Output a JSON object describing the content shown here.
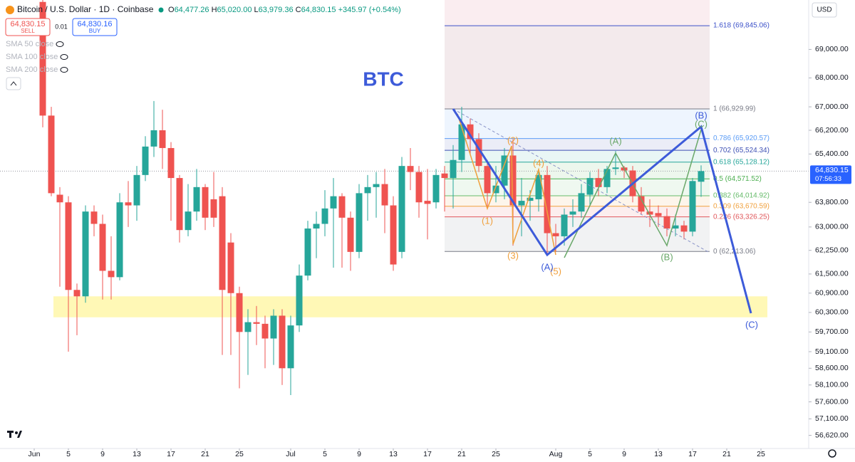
{
  "header": {
    "symbol": "Bitcoin / U.S. Dollar · 1D · Coinbase",
    "ohlc": [
      {
        "key": "O",
        "value": "64,477.26"
      },
      {
        "key": "H",
        "value": "65,020.00"
      },
      {
        "key": "L",
        "value": "63,979.36"
      },
      {
        "key": "C",
        "value": "64,830.15"
      }
    ],
    "change": "+345.97 (+0.54%)",
    "sell_price": "64,830.15",
    "sell": "SELL",
    "spread": "0.01",
    "buy_price": "64,830.16",
    "buy": "BUY",
    "indicators": [
      "SMA 50 close",
      "SMA 100 close",
      "SMA 200 close"
    ],
    "currency": "USD"
  },
  "chart_data": {
    "type": "candlestick",
    "title": "BTC",
    "log_scale": true,
    "grid": false,
    "up_color": "#26a69a",
    "down_color": "#ef5350",
    "xlim": [
      -4,
      90.583
    ],
    "ylim": [
      56240,
      70770
    ],
    "xticks": [
      {
        "value": 0,
        "label": "Jun"
      },
      {
        "value": 4,
        "label": "5"
      },
      {
        "value": 8,
        "label": "9"
      },
      {
        "value": 12,
        "label": "13"
      },
      {
        "value": 16,
        "label": "17"
      },
      {
        "value": 20,
        "label": "21"
      },
      {
        "value": 24,
        "label": "25"
      },
      {
        "value": 30,
        "label": "Jul"
      },
      {
        "value": 34,
        "label": "5"
      },
      {
        "value": 38,
        "label": "9"
      },
      {
        "value": 42,
        "label": "13"
      },
      {
        "value": 46,
        "label": "17"
      },
      {
        "value": 50,
        "label": "21"
      },
      {
        "value": 54,
        "label": "25"
      },
      {
        "value": 61,
        "label": "Aug"
      },
      {
        "value": 65,
        "label": "5"
      },
      {
        "value": 69,
        "label": "9"
      },
      {
        "value": 73,
        "label": "13"
      },
      {
        "value": 77,
        "label": "17"
      },
      {
        "value": 81,
        "label": "21"
      },
      {
        "value": 85,
        "label": "25"
      }
    ],
    "yticks": [
      {
        "value": 56620,
        "label": "56,620.00"
      },
      {
        "value": 57100,
        "label": "57,100.00"
      },
      {
        "value": 57600,
        "label": "57,600.00"
      },
      {
        "value": 58100,
        "label": "58,100.00"
      },
      {
        "value": 58600,
        "label": "58,600.00"
      },
      {
        "value": 59100,
        "label": "59,100.00"
      },
      {
        "value": 59700,
        "label": "59,700.00"
      },
      {
        "value": 60300,
        "label": "60,300.00"
      },
      {
        "value": 60900,
        "label": "60,900.00"
      },
      {
        "value": 61500,
        "label": "61,500.00"
      },
      {
        "value": 62250,
        "label": "62,250.00"
      },
      {
        "value": 63000,
        "label": "63,000.00"
      },
      {
        "value": 63800,
        "label": "63,800.00"
      },
      {
        "value": 65400,
        "label": "65,400.00"
      },
      {
        "value": 66200,
        "label": "66,200.00"
      },
      {
        "value": 67000,
        "label": "67,000.00"
      },
      {
        "value": 68000,
        "label": "68,000.00"
      },
      {
        "value": 69000,
        "label": "69,000.00"
      }
    ],
    "x": [
      1,
      2,
      3,
      4,
      5,
      6,
      7,
      8,
      9,
      10,
      11,
      12,
      13,
      14,
      15,
      16,
      17,
      18,
      19,
      20,
      21,
      22,
      23,
      24,
      25,
      26,
      27,
      28,
      29,
      30,
      31,
      32,
      33,
      34,
      35,
      36,
      37,
      38,
      39,
      40,
      41,
      42,
      43,
      44,
      45,
      46,
      47,
      48,
      49,
      50,
      51,
      52,
      53,
      54,
      55,
      56,
      57,
      58,
      59,
      60,
      61,
      62,
      63,
      64,
      65,
      66,
      67,
      68,
      69,
      70,
      71,
      72,
      73,
      74,
      75,
      76,
      77,
      78
    ],
    "open": [
      70700,
      66700,
      64050,
      63800,
      61000,
      60800,
      63500,
      63100,
      61600,
      61400,
      63800,
      63700,
      64700,
      65650,
      66200,
      65600,
      64600,
      62900,
      63500,
      64300,
      63900,
      64000,
      62500,
      60900,
      59700,
      60000,
      59950,
      59500,
      60200,
      58600,
      59900,
      61450,
      62950,
      63100,
      63600,
      64000,
      63300,
      62200,
      64100,
      64300,
      64400,
      63700,
      62200,
      65000,
      64800,
      63850,
      63800,
      64750,
      64600,
      65200,
      66400,
      65900,
      65000,
      64100,
      64350,
      65350,
      63700,
      63850,
      63900,
      64700,
      62800,
      62700,
      63400,
      63500,
      64050,
      64600,
      64300,
      64900,
      64950,
      64850,
      64000,
      63500,
      63450,
      63350,
      62950,
      63050,
      62850,
      64477.26
    ],
    "high": [
      71500,
      67000,
      64300,
      64000,
      61200,
      63700,
      63700,
      63400,
      62700,
      64100,
      64500,
      65000,
      66000,
      67200,
      66900,
      65800,
      64700,
      64400,
      64900,
      64400,
      64800,
      64300,
      62800,
      61100,
      60400,
      60500,
      60200,
      60400,
      60400,
      60200,
      61800,
      63200,
      63500,
      64200,
      64600,
      64100,
      63500,
      64400,
      64700,
      64800,
      64900,
      64000,
      65300,
      65600,
      65000,
      64900,
      64900,
      65000,
      65700,
      67000,
      66600,
      66100,
      65200,
      65000,
      65600,
      65900,
      64600,
      64200,
      64900,
      65000,
      63100,
      63600,
      63900,
      64400,
      64800,
      64900,
      65000,
      65500,
      65000,
      65000,
      64300,
      63900,
      63700,
      63600,
      63400,
      63200,
      64600,
      65020
    ],
    "low": [
      66300,
      64000,
      61100,
      59100,
      59600,
      60600,
      62700,
      60700,
      60700,
      61300,
      63000,
      63200,
      64500,
      65300,
      64900,
      63200,
      62500,
      62700,
      63200,
      62900,
      63000,
      59000,
      59000,
      58000,
      58400,
      59300,
      58600,
      58700,
      58100,
      57800,
      59700,
      61300,
      62000,
      62700,
      61700,
      61700,
      61600,
      62000,
      63200,
      63300,
      62800,
      61600,
      62000,
      64200,
      63300,
      62600,
      63600,
      63500,
      63600,
      64800,
      65400,
      64800,
      63600,
      63800,
      63900,
      62400,
      62700,
      63200,
      63500,
      62100,
      62200,
      62400,
      63000,
      63300,
      63700,
      64000,
      64100,
      64700,
      64600,
      63800,
      63400,
      63000,
      63000,
      62700,
      62700,
      62600,
      62700,
      63979.36
    ],
    "close": [
      66700,
      64100,
      63800,
      61000,
      60800,
      63500,
      63100,
      61600,
      61400,
      63800,
      63700,
      64700,
      65650,
      66200,
      65600,
      64600,
      62900,
      63500,
      64300,
      63300,
      63300,
      61000,
      60900,
      59700,
      60000,
      59950,
      59500,
      60200,
      58600,
      59900,
      61450,
      62950,
      63100,
      63600,
      64000,
      63300,
      62200,
      64100,
      64300,
      64400,
      63700,
      61800,
      65000,
      64800,
      63800,
      63750,
      64700,
      64600,
      65200,
      66400,
      65900,
      65000,
      64100,
      64350,
      65350,
      63700,
      63850,
      63950,
      64700,
      62800,
      62700,
      63400,
      63500,
      64100,
      64600,
      64300,
      64900,
      64950,
      64850,
      64000,
      63500,
      63400,
      63350,
      62950,
      63050,
      62850,
      64500,
      64830.15
    ],
    "last_price": {
      "value": 64830.15,
      "label": "64,830.15",
      "countdown": "07:56:33"
    },
    "support_zone": {
      "values": [
        60150,
        60800
      ],
      "color": "#fff59d"
    },
    "fib_levels": [
      {
        "value": 69845.06,
        "label": "1.618 (69,845.06)",
        "color": "#3d52c9"
      },
      {
        "value": 66929.99,
        "label": "1 (66,929.99)",
        "color": "#787b86"
      },
      {
        "value": 65920.57,
        "label": "0.786 (65,920.57)",
        "color": "#5b9cf6"
      },
      {
        "value": 65524.34,
        "label": "0.702 (65,524.34)",
        "color": "#3f51b5"
      },
      {
        "value": 65128.12,
        "label": "0.618 (65,128.12)",
        "color": "#26a69a"
      },
      {
        "value": 64571.52,
        "label": "0.5 (64,571.52)",
        "color": "#4caf50"
      },
      {
        "value": 64014.92,
        "label": "0.382 (64,014.92)",
        "color": "#66bb6a"
      },
      {
        "value": 63670.59,
        "label": "0.309 (63,670.59)",
        "color": "#f0a03c"
      },
      {
        "value": 63326.25,
        "label": "0.236 (63,326.25)",
        "color": "#e0575b"
      },
      {
        "value": 62213.06,
        "label": "0 (62,213.06)",
        "color": "#787b86"
      }
    ],
    "waves": {
      "blue": [
        "(A)",
        "(B)",
        "(C)"
      ],
      "orange": [
        "(1)",
        "(2)",
        "(3)",
        "(4)",
        "(5)"
      ],
      "green": [
        "(A)",
        "(B)",
        "(C)"
      ]
    }
  }
}
